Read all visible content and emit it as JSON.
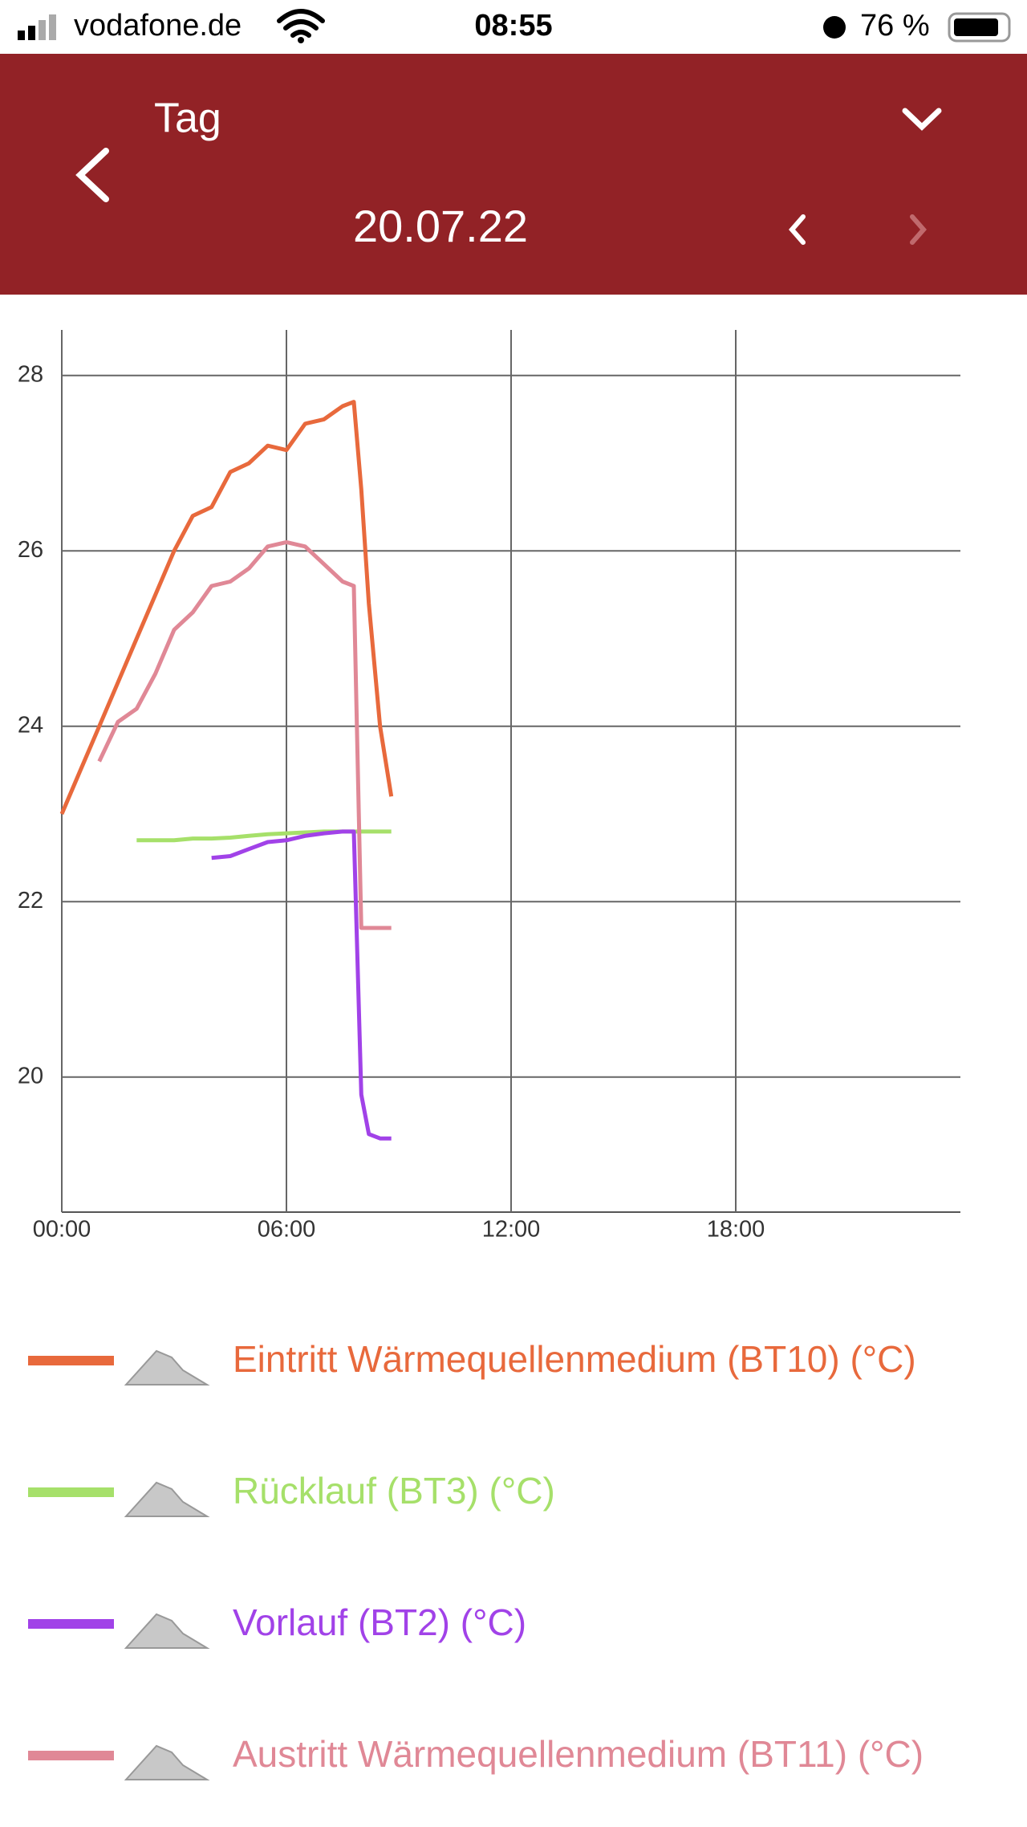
{
  "status_bar": {
    "carrier": "vodafone.de",
    "time": "08:55",
    "battery": "76 %"
  },
  "header": {
    "title": "Tag",
    "date": "20.07.22"
  },
  "chart_data": {
    "type": "line",
    "x": [
      0,
      0.5,
      1,
      1.5,
      2,
      2.5,
      3,
      3.5,
      4,
      4.5,
      5,
      5.5,
      6,
      6.5,
      7,
      7.5,
      7.8,
      8,
      8.2,
      8.5,
      8.8
    ],
    "xlim": [
      0,
      24
    ],
    "xticks": [
      {
        "value": 0,
        "label": "00:00"
      },
      {
        "value": 6,
        "label": "06:00"
      },
      {
        "value": 12,
        "label": "12:00"
      },
      {
        "value": 18,
        "label": "18:00"
      }
    ],
    "ylim": [
      18.46,
      28.52
    ],
    "yticks": [
      20,
      22,
      24,
      26,
      28
    ],
    "grid": true,
    "series": [
      {
        "name": "Eintritt Wärmequellenmedium (BT10) (°C)",
        "color": "#e8693c",
        "values": [
          23.0,
          23.5,
          24.0,
          24.5,
          25.0,
          25.5,
          26.0,
          26.4,
          26.5,
          26.9,
          27.0,
          27.2,
          27.15,
          27.45,
          27.5,
          27.65,
          27.7,
          26.7,
          25.4,
          24.0,
          23.2
        ]
      },
      {
        "name": "Rücklauf (BT3) (°C)",
        "color": "#a6e06a",
        "values": [
          null,
          null,
          null,
          null,
          22.7,
          22.7,
          22.7,
          22.72,
          22.72,
          22.73,
          22.75,
          22.77,
          22.78,
          22.79,
          22.8,
          22.8,
          22.8,
          22.8,
          22.8,
          22.8,
          22.8
        ]
      },
      {
        "name": "Vorlauf (BT2) (°C)",
        "color": "#a142e8",
        "values": [
          null,
          null,
          null,
          null,
          null,
          null,
          null,
          null,
          22.5,
          22.52,
          22.6,
          22.68,
          22.7,
          22.75,
          22.78,
          22.8,
          22.8,
          19.8,
          19.35,
          19.3,
          19.3
        ]
      },
      {
        "name": "Austritt Wärmequellenmedium (BT11) (°C)",
        "color": "#e08896",
        "values": [
          null,
          null,
          23.6,
          24.05,
          24.2,
          24.6,
          25.1,
          25.3,
          25.6,
          25.65,
          25.8,
          26.05,
          26.1,
          26.05,
          25.85,
          25.65,
          25.6,
          21.7,
          21.7,
          21.7,
          21.7
        ]
      }
    ]
  }
}
